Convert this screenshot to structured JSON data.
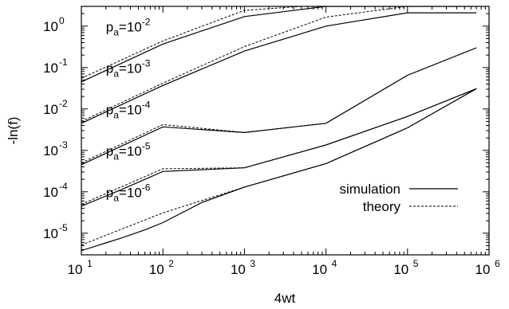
{
  "chart_data": {
    "type": "line",
    "xlabel": "4wt",
    "ylabel": "-ln(f)",
    "xscale": "log",
    "yscale": "log",
    "xlim": [
      10,
      1000000
    ],
    "ylim": [
      3e-06,
      3
    ],
    "grid": false,
    "legend_position": "bottom-right",
    "x_ticks": [
      {
        "value": 10,
        "base": "10",
        "exp": "1"
      },
      {
        "value": 100,
        "base": "10",
        "exp": "2"
      },
      {
        "value": 1000,
        "base": "10",
        "exp": "3"
      },
      {
        "value": 10000,
        "base": "10",
        "exp": "4"
      },
      {
        "value": 100000,
        "base": "10",
        "exp": "5"
      },
      {
        "value": 1000000,
        "base": "10",
        "exp": "6"
      }
    ],
    "y_ticks": [
      {
        "value": 1e-05,
        "base": "10",
        "exp": "-5"
      },
      {
        "value": 0.0001,
        "base": "10",
        "exp": "-4"
      },
      {
        "value": 0.001,
        "base": "10",
        "exp": "-3"
      },
      {
        "value": 0.01,
        "base": "10",
        "exp": "-2"
      },
      {
        "value": 0.1,
        "base": "10",
        "exp": "-1"
      },
      {
        "value": 1,
        "base": "10",
        "exp": "0"
      }
    ],
    "legend": [
      {
        "label": "simulation",
        "style": "solid"
      },
      {
        "label": "theory",
        "style": "dashed"
      }
    ],
    "annotations": [
      {
        "base": "p",
        "sub": "a",
        "mid": "=10",
        "exp": "-2",
        "x": 20,
        "y": 0.75
      },
      {
        "base": "p",
        "sub": "a",
        "mid": "=10",
        "exp": "-3",
        "x": 20,
        "y": 0.075
      },
      {
        "base": "p",
        "sub": "a",
        "mid": "=10",
        "exp": "-4",
        "x": 20,
        "y": 0.0075
      },
      {
        "base": "p",
        "sub": "a",
        "mid": "=10",
        "exp": "-5",
        "x": 20,
        "y": 0.00075
      },
      {
        "base": "p",
        "sub": "a",
        "mid": "=10",
        "exp": "-6",
        "x": 20,
        "y": 7.5e-05
      }
    ],
    "series": [
      {
        "style": "solid",
        "x": [
          10,
          100,
          1000,
          10000,
          100000,
          700000
        ],
        "y": [
          0.045,
          0.37,
          1.7,
          3,
          3,
          3
        ]
      },
      {
        "style": "dashed",
        "x": [
          10,
          100,
          1000,
          5000
        ],
        "y": [
          0.055,
          0.44,
          2.4,
          3
        ]
      },
      {
        "style": "solid",
        "x": [
          10,
          100,
          1000,
          10000,
          100000,
          700000
        ],
        "y": [
          0.0045,
          0.037,
          0.25,
          1.0,
          2.1,
          2.1
        ]
      },
      {
        "style": "dashed",
        "x": [
          10,
          100,
          1000,
          10000,
          100000,
          500000
        ],
        "y": [
          0.005,
          0.042,
          0.32,
          1.65,
          3,
          3
        ]
      },
      {
        "style": "solid",
        "x": [
          10,
          100,
          1000,
          10000,
          100000,
          700000
        ],
        "y": [
          0.00045,
          0.0037,
          0.0027,
          0.0045,
          0.065,
          0.3
        ]
      },
      {
        "style": "dashed",
        "x": [
          10,
          100,
          1000,
          10000,
          100000,
          700000
        ],
        "y": [
          0.0005,
          0.0042,
          0.0027,
          0.0045,
          0.065,
          0.3
        ]
      },
      {
        "style": "solid",
        "x": [
          10,
          30,
          100,
          1000,
          10000,
          100000,
          700000
        ],
        "y": [
          4.5e-05,
          0.00011,
          0.00031,
          0.00038,
          0.00135,
          0.0066,
          0.031
        ]
      },
      {
        "style": "dashed",
        "x": [
          10,
          100,
          1000,
          10000,
          100000,
          700000
        ],
        "y": [
          5e-05,
          0.00036,
          0.00038,
          0.00135,
          0.0066,
          0.031
        ]
      },
      {
        "style": "solid",
        "x": [
          10,
          30,
          60,
          100,
          300,
          1000,
          10000,
          100000,
          700000
        ],
        "y": [
          3.8e-06,
          7.5e-06,
          1.2e-05,
          1.8e-05,
          5.5e-05,
          0.00013,
          0.00048,
          0.0035,
          0.031
        ]
      },
      {
        "style": "dashed",
        "x": [
          10,
          100,
          1000,
          10000,
          100000,
          700000
        ],
        "y": [
          5.2e-06,
          3.1e-05,
          0.00013,
          0.00048,
          0.0035,
          0.031
        ]
      }
    ]
  }
}
